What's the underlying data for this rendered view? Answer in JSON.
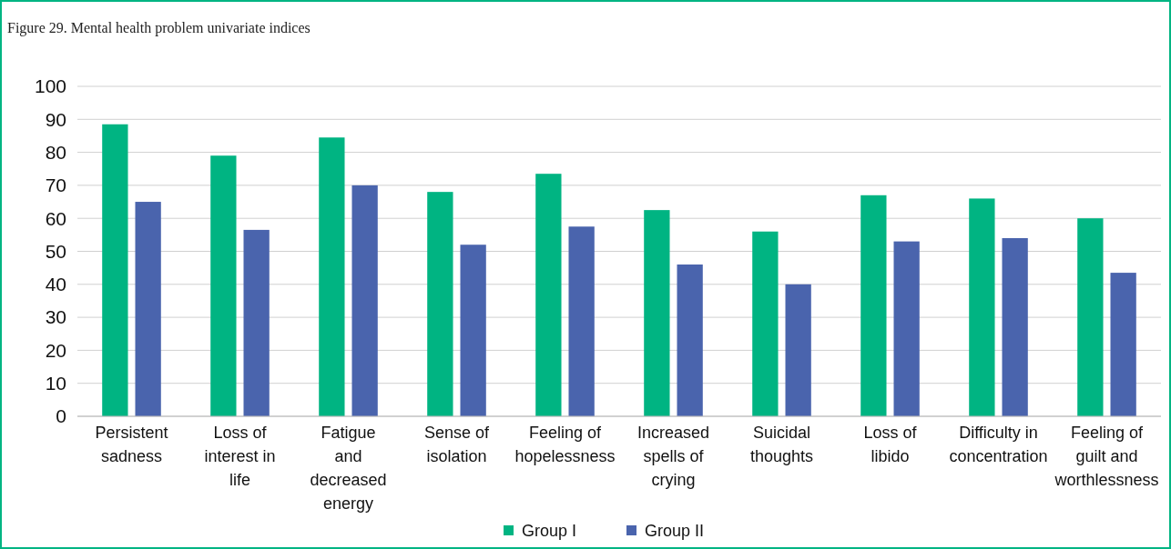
{
  "chart_data": {
    "type": "bar",
    "title": "Figure 29. Mental health problem univariate indices",
    "categories": [
      "Persistent sadness",
      "Loss of interest in life",
      "Fatigue and decreased energy",
      "Sense of isolation",
      "Feeling of hopelessness",
      "Increased spells of crying",
      "Suicidal thoughts",
      "Loss of libido",
      "Difficulty in concentration",
      "Feeling of guilt and worthlessness"
    ],
    "series": [
      {
        "name": "Group I",
        "color": "#00b482",
        "values": [
          88.5,
          79,
          84.5,
          68,
          73.5,
          62.5,
          56,
          67,
          66,
          60
        ]
      },
      {
        "name": "Group II",
        "color": "#4a64ad",
        "values": [
          65,
          56.5,
          70,
          52,
          57.5,
          46,
          40,
          53,
          54,
          43.5
        ]
      }
    ],
    "ylim": [
      0,
      100
    ],
    "yticks": [
      0,
      10,
      20,
      30,
      40,
      50,
      60,
      70,
      80,
      90,
      100
    ],
    "grid": "y",
    "legend": "bottom"
  }
}
